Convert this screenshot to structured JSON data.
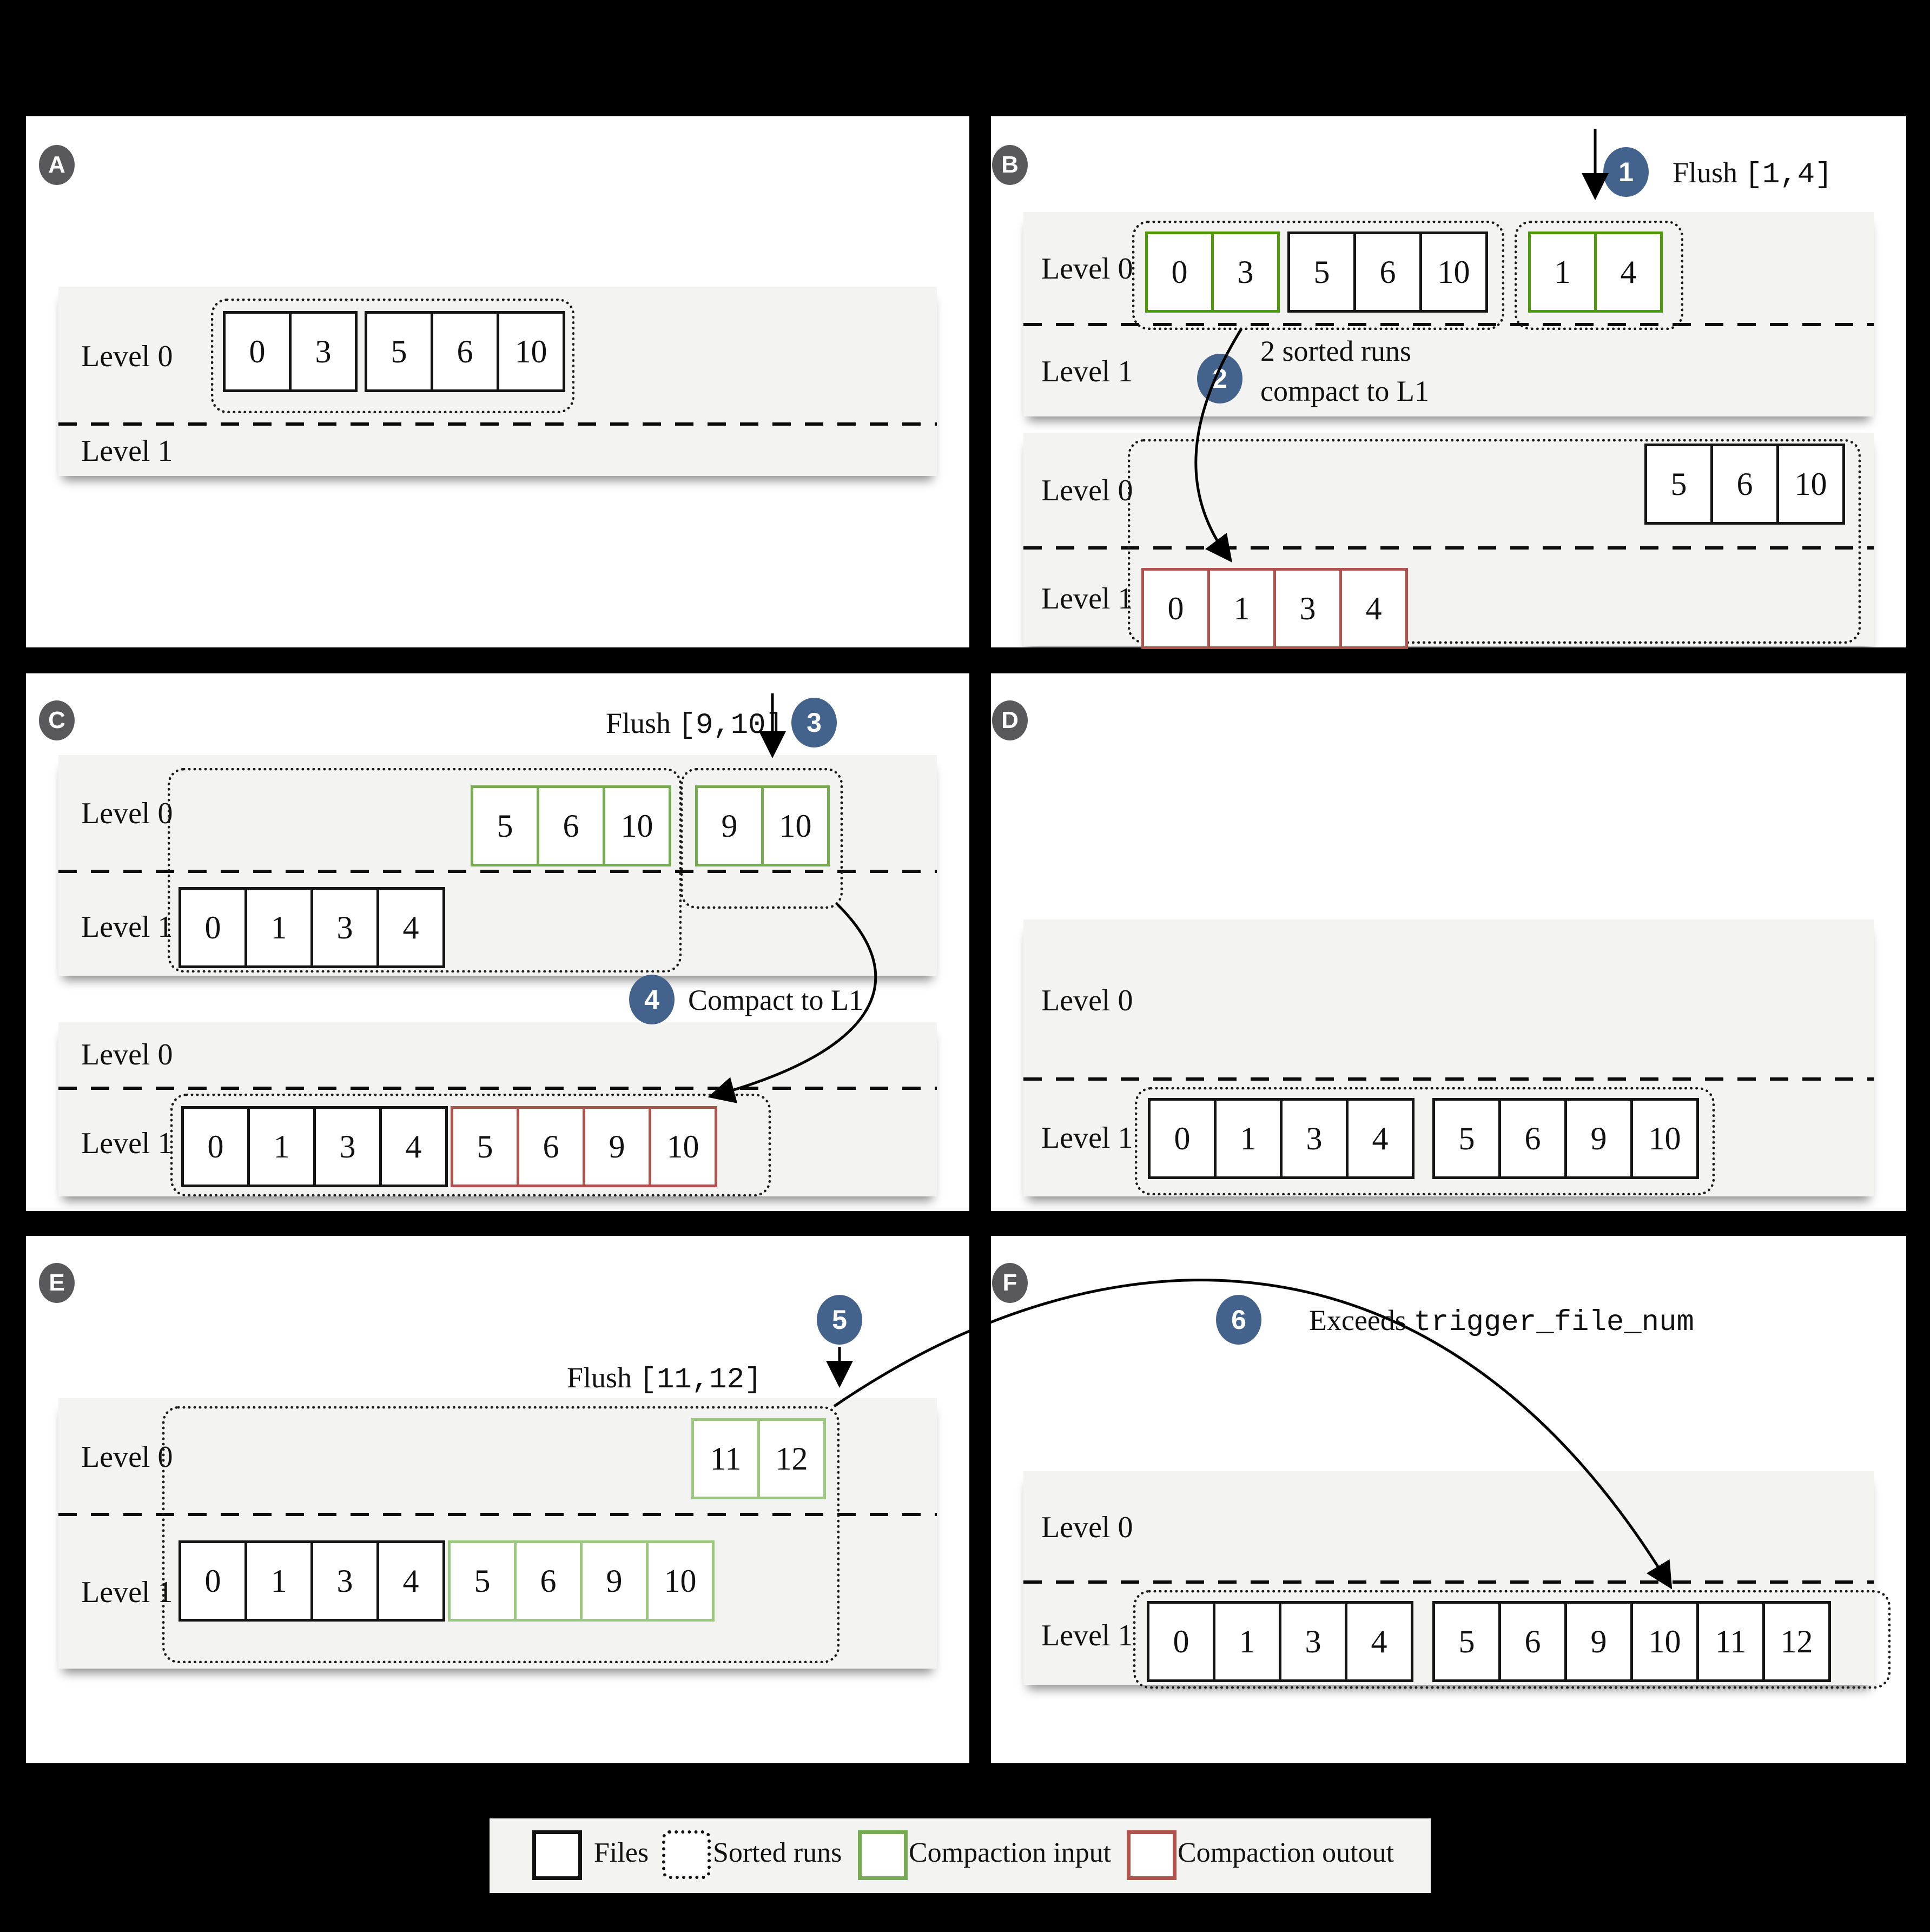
{
  "labels": {
    "l0": "Level 0",
    "l1": "Level 1"
  },
  "badges": {
    "a": "A",
    "b": "B",
    "c": "C",
    "d": "D",
    "e": "E",
    "f": "F"
  },
  "steps": {
    "s1": "1",
    "s2": "2",
    "s3": "3",
    "s4": "4",
    "s5": "5",
    "s6": "6"
  },
  "annotations": {
    "flush1": {
      "word": "Flush",
      "range": "[1,4]"
    },
    "step2": {
      "line1": "2 sorted runs",
      "line2": "compact to L1"
    },
    "flush3": {
      "word": "Flush",
      "range": "[9,10]"
    },
    "step4": "Compact to L1",
    "flush5": {
      "word": "Flush",
      "range": "[11,12]"
    },
    "step6": {
      "word": "Exceeds",
      "code": "trigger_file_num"
    }
  },
  "groups": {
    "a_run1": {
      "values": [
        "0",
        "3"
      ],
      "color": "file"
    },
    "a_run2": {
      "values": [
        "5",
        "6",
        "10"
      ],
      "color": "file"
    },
    "b1_g1": {
      "values": [
        "0",
        "3"
      ],
      "color": "input"
    },
    "b1_g2": {
      "values": [
        "5",
        "6",
        "10"
      ],
      "color": "file"
    },
    "b1_g3": {
      "values": [
        "1",
        "4"
      ],
      "color": "input"
    },
    "b2_g1": {
      "values": [
        "5",
        "6",
        "10"
      ],
      "color": "file"
    },
    "b2_g2": {
      "values": [
        "0",
        "1",
        "3",
        "4"
      ],
      "color": "output"
    },
    "c1_g1": {
      "values": [
        "5",
        "6",
        "10"
      ],
      "color": "input-mid"
    },
    "c1_g2": {
      "values": [
        "0",
        "1",
        "3",
        "4"
      ],
      "color": "file"
    },
    "c1_g3": {
      "values": [
        "9",
        "10"
      ],
      "color": "input-mid"
    },
    "c2_g1": {
      "values": [
        "0",
        "1",
        "3",
        "4"
      ],
      "color": "file"
    },
    "c2_g2": {
      "values": [
        "5",
        "6",
        "9",
        "10"
      ],
      "color": "output"
    },
    "d_g1": {
      "values": [
        "0",
        "1",
        "3",
        "4"
      ],
      "color": "file"
    },
    "d_g2": {
      "values": [
        "5",
        "6",
        "9",
        "10"
      ],
      "color": "file"
    },
    "e_g1": {
      "values": [
        "11",
        "12"
      ],
      "color": "input-light"
    },
    "e_g2": {
      "values": [
        "0",
        "1",
        "3",
        "4"
      ],
      "color": "file"
    },
    "e_g3": {
      "values": [
        "5",
        "6",
        "9",
        "10"
      ],
      "color": "input-light"
    },
    "f_g1": {
      "values": [
        "0",
        "1",
        "3",
        "4"
      ],
      "color": "file"
    },
    "f_g2": {
      "values": [
        "5",
        "6",
        "9",
        "10",
        "11",
        "12"
      ],
      "color": "file"
    }
  },
  "legend": {
    "items": [
      {
        "label": "Files"
      },
      {
        "label": "Sorted runs"
      },
      {
        "label": "Compaction input"
      },
      {
        "label": "Compaction outout"
      }
    ]
  },
  "colors": {
    "compaction_input_green": "#4e9a06",
    "compaction_input_green_mid": "#76ab52",
    "compaction_input_green_light": "#9cc87e",
    "compaction_output_red": "#b0524c",
    "file_border_black": "#141414",
    "step_circle_blue": "#44638c",
    "band_gray": "#f3f3f2"
  }
}
